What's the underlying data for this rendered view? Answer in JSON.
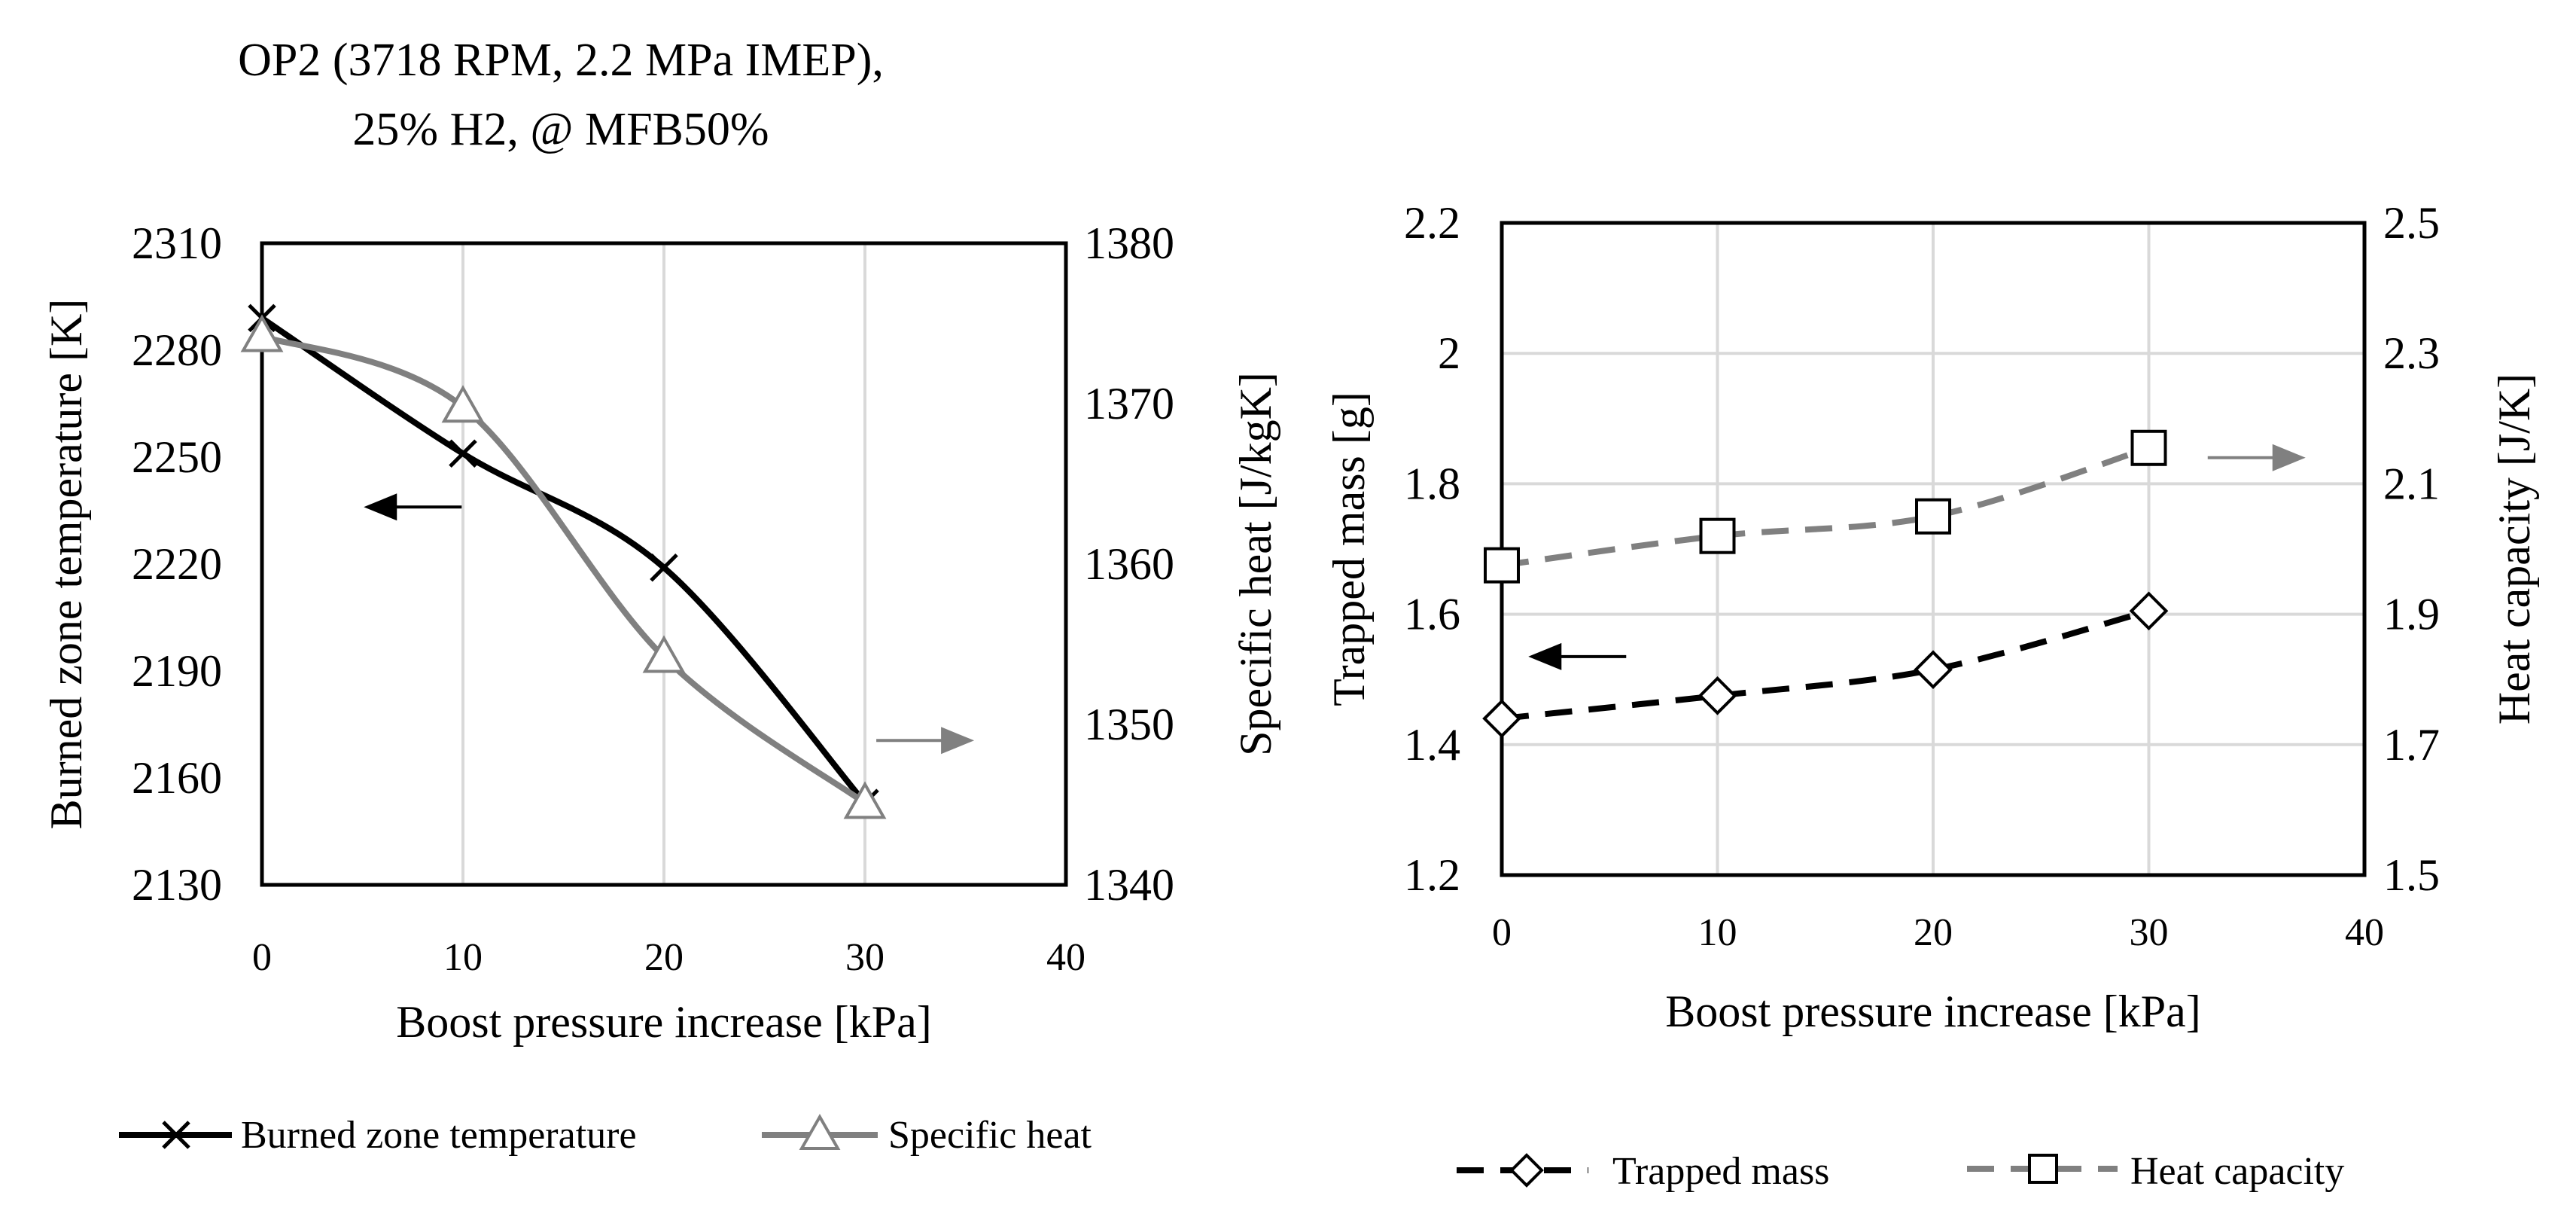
{
  "chart_data": [
    {
      "type": "line",
      "title_lines": [
        "OP2 (3718 RPM, 2.2 MPa IMEP),",
        "25% H2, @ MFB50%"
      ],
      "xlabel": "Boost pressure increase  [kPa]",
      "ylabel_left": "Burned zone temperature [K]",
      "ylabel_right": "Specific heat  [J/kgK]",
      "xlim": [
        0,
        40
      ],
      "xticks": [
        "0",
        "10",
        "20",
        "30",
        "40"
      ],
      "ylim_left": [
        2130,
        2310
      ],
      "yticks_left": [
        "2130",
        "2160",
        "2190",
        "2220",
        "2250",
        "2280",
        "2310"
      ],
      "ylim_right": [
        1340,
        1380
      ],
      "yticks_right": [
        "1340",
        "1350",
        "1360",
        "1370",
        "1380"
      ],
      "grid": "vertical",
      "legend_position": "bottom",
      "series": [
        {
          "name": "Burned zone temperature",
          "axis": "left",
          "color": "#000000",
          "marker": "x",
          "dashed": false,
          "x": [
            0,
            10,
            20,
            30
          ],
          "values": [
            2289,
            2251,
            2219,
            2153
          ]
        },
        {
          "name": "Specific heat",
          "axis": "right",
          "color": "#808080",
          "marker": "triangle",
          "dashed": false,
          "x": [
            0,
            10,
            20,
            30
          ],
          "values": [
            1374.2,
            1369.8,
            1354.2,
            1345.1
          ]
        }
      ],
      "arrows": [
        {
          "direction": "left",
          "color": "#000000",
          "x": 7.5,
          "y": 2236,
          "axis": "left"
        },
        {
          "direction": "right",
          "color": "#808080",
          "x": 33,
          "y": 1349,
          "axis": "right"
        }
      ]
    },
    {
      "type": "line",
      "xlabel": "Boost pressure increase  [kPa]",
      "ylabel_left": "Trapped mass [g]",
      "ylabel_right": "Heat capacity  [J/K]",
      "xlim": [
        0,
        40
      ],
      "xticks": [
        "0",
        "10",
        "20",
        "30",
        "40"
      ],
      "ylim_left": [
        1.2,
        2.2
      ],
      "yticks_left": [
        "1.2",
        "1.4",
        "1.6",
        "1.8",
        "2",
        "2.2"
      ],
      "ylim_right": [
        1.5,
        2.5
      ],
      "yticks_right": [
        "1.5",
        "1.7",
        "1.9",
        "2.1",
        "2.3",
        "2.5"
      ],
      "grid": "both",
      "legend_position": "bottom",
      "series": [
        {
          "name": "Trapped mass",
          "axis": "left",
          "color": "#000000",
          "marker": "diamond",
          "dashed": true,
          "x": [
            0,
            10,
            20,
            30
          ],
          "values": [
            1.44,
            1.475,
            1.515,
            1.605
          ]
        },
        {
          "name": "Heat capacity",
          "axis": "right",
          "color": "#808080",
          "marker": "square",
          "dashed": true,
          "x": [
            0,
            10,
            20,
            30
          ],
          "values": [
            1.975,
            2.02,
            2.05,
            2.155
          ]
        }
      ],
      "arrows": [
        {
          "direction": "left",
          "color": "#000000",
          "x": 3.5,
          "y": 1.535,
          "axis": "left"
        },
        {
          "direction": "right",
          "color": "#808080",
          "x": 35,
          "y": 2.14,
          "axis": "right"
        }
      ]
    }
  ]
}
